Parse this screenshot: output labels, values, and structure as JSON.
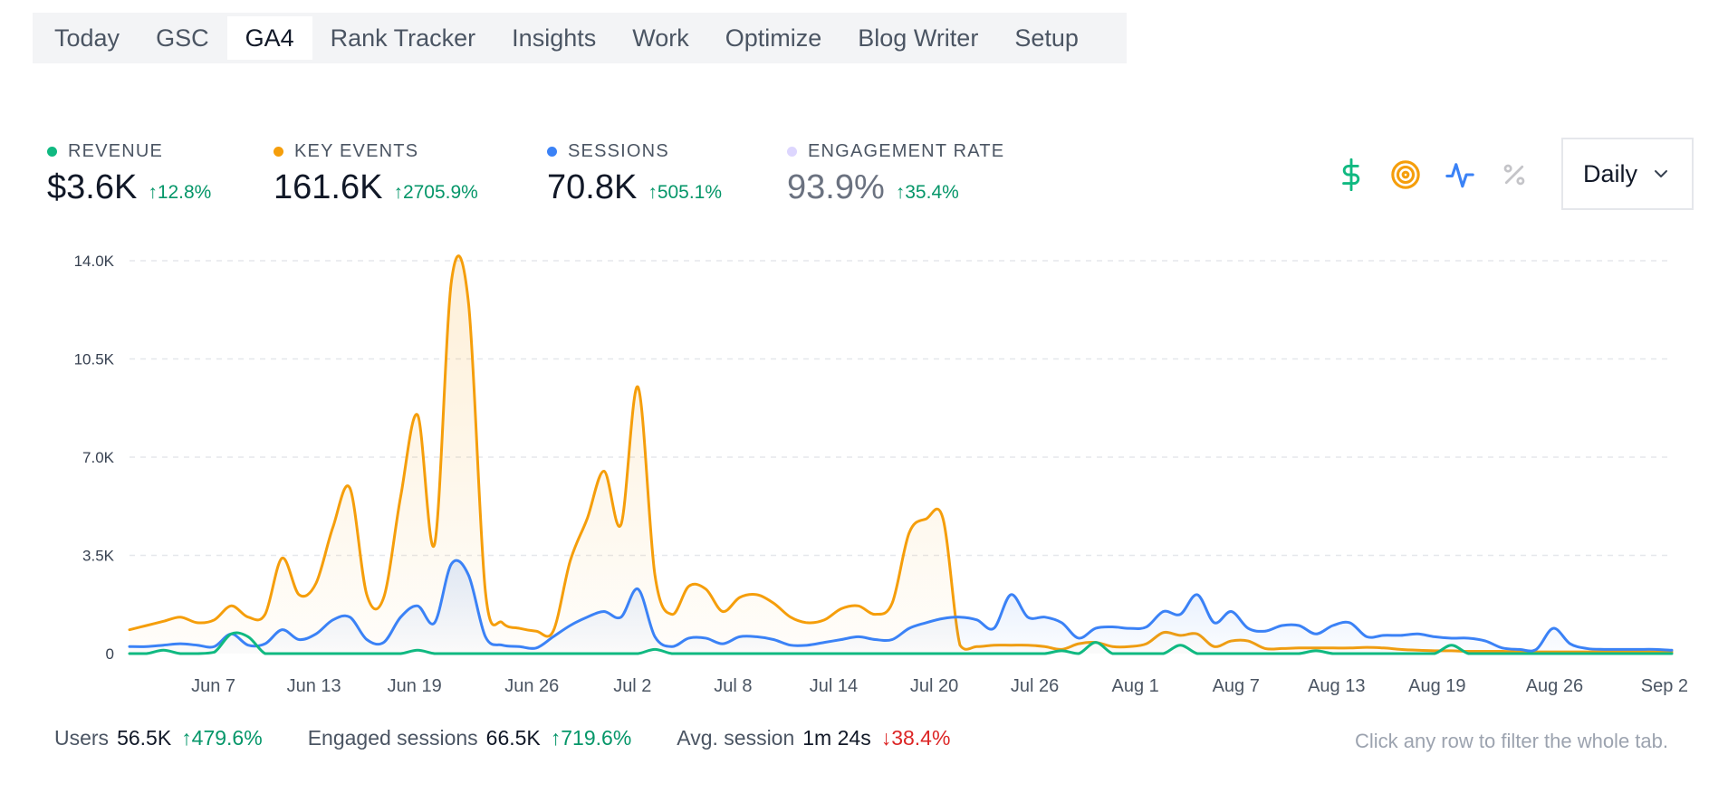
{
  "tabs": [
    {
      "label": "Today",
      "active": false
    },
    {
      "label": "GSC",
      "active": false
    },
    {
      "label": "GA4",
      "active": true
    },
    {
      "label": "Rank Tracker",
      "active": false
    },
    {
      "label": "Insights",
      "active": false
    },
    {
      "label": "Work",
      "active": false
    },
    {
      "label": "Optimize",
      "active": false
    },
    {
      "label": "Blog Writer",
      "active": false
    },
    {
      "label": "Setup",
      "active": false
    }
  ],
  "metrics": [
    {
      "label": "REVENUE",
      "value": "$3.6K",
      "delta": "↑12.8%",
      "color": "#10b981"
    },
    {
      "label": "KEY EVENTS",
      "value": "161.6K",
      "delta": "↑2705.9%",
      "color": "#f59e0b"
    },
    {
      "label": "SESSIONS",
      "value": "70.8K",
      "delta": "↑505.1%",
      "color": "#3b82f6"
    },
    {
      "label": "ENGAGEMENT RATE",
      "value": "93.9%",
      "delta": "↑35.4%",
      "color": "#ddd6fe"
    }
  ],
  "toggles": [
    {
      "name": "dollar-icon",
      "color": "#10b981"
    },
    {
      "name": "target-icon",
      "color": "#f59e0b"
    },
    {
      "name": "activity-icon",
      "color": "#3b82f6"
    },
    {
      "name": "percent-icon",
      "color": "#c4c4c8"
    }
  ],
  "granularity": {
    "selected": "Daily"
  },
  "chart_data": {
    "type": "line",
    "y_ticks": [
      "0",
      "3.5K",
      "7.0K",
      "10.5K",
      "14.0K"
    ],
    "ylim": [
      0,
      14000
    ],
    "x_ticks": [
      "Jun 7",
      "Jun 13",
      "Jun 19",
      "Jun 26",
      "Jul 2",
      "Jul 8",
      "Jul 14",
      "Jul 20",
      "Jul 26",
      "Aug 1",
      "Aug 7",
      "Aug 13",
      "Aug 19",
      "Aug 26",
      "Sep 2"
    ],
    "x_range": [
      "Jun 2",
      "Sep 2"
    ],
    "grid": true,
    "series": [
      {
        "name": "Key events",
        "color": "#f59e0b",
        "area": true,
        "values": [
          850,
          1000,
          1150,
          1300,
          1100,
          1200,
          1700,
          1300,
          1400,
          3400,
          2100,
          2500,
          4500,
          5900,
          2100,
          2000,
          5600,
          8500,
          3900,
          13300,
          12500,
          2200,
          1100,
          900,
          800,
          800,
          3300,
          4800,
          6500,
          4600,
          9500,
          2800,
          1400,
          2400,
          2300,
          1500,
          2000,
          2100,
          1800,
          1300,
          1100,
          1200,
          1600,
          1700,
          1400,
          1800,
          4300,
          4800,
          4800,
          300,
          250,
          300,
          300,
          300,
          250,
          150,
          350,
          400,
          250,
          250,
          350,
          750,
          650,
          700,
          250,
          450,
          450,
          180,
          180,
          200,
          200,
          200,
          200,
          220,
          200,
          150,
          120,
          100,
          100,
          80,
          80,
          80,
          60,
          60,
          60,
          60,
          60,
          60,
          60,
          60,
          60,
          60
        ]
      },
      {
        "name": "Sessions",
        "color": "#3b82f6",
        "area": true,
        "values": [
          250,
          250,
          300,
          350,
          300,
          250,
          700,
          300,
          350,
          850,
          500,
          700,
          1200,
          1300,
          500,
          400,
          1300,
          1700,
          1100,
          3200,
          2800,
          600,
          300,
          250,
          200,
          600,
          1000,
          1300,
          1500,
          1300,
          2300,
          600,
          250,
          550,
          550,
          350,
          600,
          600,
          500,
          300,
          300,
          400,
          500,
          600,
          500,
          500,
          900,
          1100,
          1250,
          1300,
          1200,
          900,
          2100,
          1300,
          1300,
          1100,
          550,
          900,
          950,
          900,
          950,
          1500,
          1400,
          2100,
          1100,
          1500,
          900,
          800,
          1000,
          1000,
          700,
          1000,
          1100,
          600,
          650,
          650,
          700,
          600,
          550,
          550,
          450,
          200,
          150,
          150,
          900,
          350,
          180,
          150,
          150,
          150,
          150,
          120
        ]
      },
      {
        "name": "Revenue",
        "color": "#10b981",
        "area": false,
        "values": [
          0,
          0,
          120,
          0,
          0,
          50,
          700,
          600,
          0,
          0,
          0,
          0,
          0,
          0,
          0,
          0,
          0,
          120,
          0,
          0,
          0,
          0,
          0,
          0,
          0,
          0,
          0,
          0,
          0,
          0,
          0,
          150,
          0,
          0,
          0,
          0,
          0,
          0,
          0,
          0,
          0,
          0,
          0,
          0,
          0,
          0,
          0,
          0,
          0,
          0,
          0,
          0,
          0,
          0,
          0,
          100,
          0,
          400,
          0,
          0,
          0,
          0,
          300,
          0,
          0,
          0,
          0,
          0,
          0,
          0,
          100,
          0,
          0,
          0,
          0,
          0,
          0,
          0,
          300,
          0,
          0,
          0,
          0,
          0,
          0,
          0,
          0,
          0,
          0,
          0,
          0,
          0
        ]
      }
    ]
  },
  "footer": {
    "users_label": "Users",
    "users_value": "56.5K",
    "users_delta": "↑479.6%",
    "engaged_label": "Engaged sessions",
    "engaged_value": "66.5K",
    "engaged_delta": "↑719.6%",
    "avg_label": "Avg. session",
    "avg_value": "1m 24s",
    "avg_delta": "↓38.4%",
    "hint": "Click any row to filter the whole tab."
  }
}
